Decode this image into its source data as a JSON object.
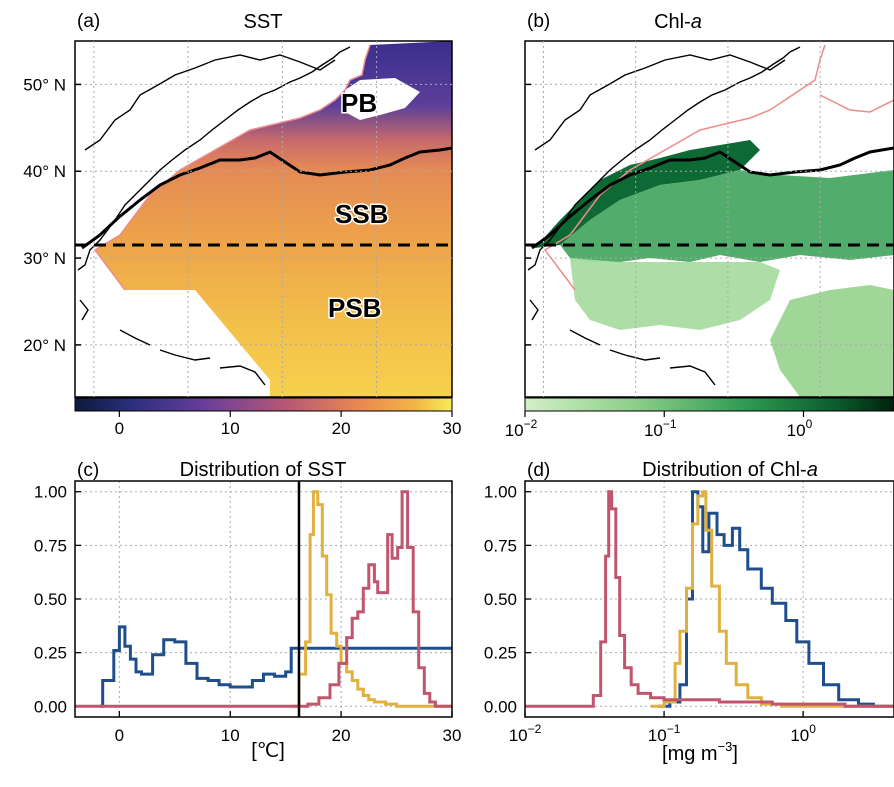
{
  "colors": {
    "pb": "#1f4e8c",
    "ssb": "#e0b040",
    "psb": "#c0566e",
    "front": "#000000",
    "boundary": "#f08a8a"
  },
  "panels": {
    "a": {
      "letter": "(a)",
      "title": "SST"
    },
    "b": {
      "letter": "(b)",
      "title_main": "Chl-",
      "title_italic": "a"
    },
    "c": {
      "letter": "(c)",
      "title": "Distribution of SST",
      "xlabel": "[℃]"
    },
    "d": {
      "letter": "(d)",
      "title_main": "Distribution of Chl-",
      "title_italic": "a",
      "xlabel_main": "[mg m",
      "xlabel_sup": "−3",
      "xlabel_end": "]"
    }
  },
  "map": {
    "lat_ticks": [
      "50° N",
      "40° N",
      "30° N",
      "20° N"
    ],
    "lat_values": [
      50,
      40,
      30,
      20
    ],
    "lat_range": [
      14,
      55
    ],
    "split_lat": 32,
    "region_labels": [
      "PB",
      "SSB",
      "PSB"
    ]
  },
  "colorbars": {
    "sst": {
      "range": [
        -4,
        30
      ],
      "ticks": [
        0,
        10,
        20,
        30
      ],
      "tick_labels": [
        "0",
        "10",
        "20",
        "30"
      ]
    },
    "chl": {
      "log_range": [
        -2,
        0.65
      ],
      "ticks": [
        -2,
        -1,
        0
      ],
      "base": "10",
      "exponents": [
        "−2",
        "−1",
        "0"
      ]
    }
  },
  "chart_data": [
    {
      "type": "line",
      "title": "Distribution of SST",
      "xlabel": "[℃]",
      "xlim": [
        -4,
        30
      ],
      "ylim": [
        -0.05,
        1.05
      ],
      "x_ticks": [
        0,
        10,
        20,
        30
      ],
      "y_ticks": [
        "0.00",
        "0.25",
        "0.50",
        "0.75",
        "1.00"
      ],
      "grid": true,
      "vline_x": 16.2,
      "series": [
        {
          "color": "#1f4e8c",
          "x": [
            -1.8,
            -1.5,
            -0.5,
            0,
            0.5,
            1,
            1.5,
            2,
            3,
            4,
            5,
            6,
            7,
            8,
            9,
            10,
            11,
            12,
            13,
            14,
            15,
            15.5,
            16.2
          ],
          "y": [
            0,
            0.12,
            0.26,
            0.37,
            0.28,
            0.22,
            0.16,
            0.15,
            0.24,
            0.31,
            0.3,
            0.2,
            0.13,
            0.12,
            0.1,
            0.09,
            0.09,
            0.12,
            0.15,
            0.14,
            0.16,
            0.27,
            0.27
          ]
        },
        {
          "color": "#e0b040",
          "x": [
            15.5,
            16.2,
            16.8,
            17.2,
            17.5,
            17.9,
            18.3,
            18.7,
            19.1,
            19.6,
            20,
            20.5,
            21,
            21.5,
            22,
            22.5,
            23,
            24,
            25
          ],
          "y": [
            0,
            0.15,
            0.3,
            0.8,
            1.0,
            0.94,
            0.7,
            0.52,
            0.34,
            0.28,
            0.2,
            0.16,
            0.12,
            0.08,
            0.05,
            0.03,
            0.02,
            0.01,
            0
          ]
        },
        {
          "color": "#c0566e",
          "x": [
            -4,
            16,
            17,
            18,
            19,
            19.8,
            20.5,
            21,
            21.5,
            22,
            22.5,
            23,
            23.3,
            23.7,
            24.2,
            24.6,
            25.1,
            25.5,
            26,
            26.5,
            27,
            27.5,
            28,
            28.5
          ],
          "y": [
            0,
            0,
            0.01,
            0.04,
            0.1,
            0.2,
            0.32,
            0.41,
            0.44,
            0.55,
            0.66,
            0.58,
            0.53,
            0.53,
            0.8,
            0.69,
            0.74,
            1.0,
            0.74,
            0.44,
            0.18,
            0.06,
            0.02,
            0
          ]
        }
      ]
    },
    {
      "type": "line",
      "title": "Distribution of Chl-a",
      "xlabel": "[mg m−3]",
      "x_scale": "log",
      "xlim": [
        0.01,
        4.5
      ],
      "ylim": [
        -0.05,
        1.05
      ],
      "x_ticks": [
        0.01,
        0.1,
        1
      ],
      "y_ticks": [
        "0.00",
        "0.25",
        "0.50",
        "0.75",
        "1.00"
      ],
      "grid": true,
      "series": [
        {
          "color": "#1f4e8c",
          "x": [
            0.09,
            0.11,
            0.13,
            0.145,
            0.16,
            0.175,
            0.19,
            0.21,
            0.24,
            0.27,
            0.31,
            0.35,
            0.4,
            0.5,
            0.6,
            0.75,
            0.9,
            1.1,
            1.4,
            1.8,
            2.5,
            3.2
          ],
          "y": [
            0,
            0.02,
            0.1,
            0.5,
            1.0,
            0.93,
            0.72,
            0.9,
            0.8,
            0.75,
            0.83,
            0.73,
            0.64,
            0.55,
            0.48,
            0.4,
            0.3,
            0.2,
            0.1,
            0.03,
            0.01,
            0
          ]
        },
        {
          "color": "#e0b040",
          "x": [
            0.08,
            0.1,
            0.12,
            0.13,
            0.145,
            0.16,
            0.175,
            0.19,
            0.2,
            0.22,
            0.25,
            0.28,
            0.33,
            0.4,
            0.5,
            0.7
          ],
          "y": [
            0,
            0.02,
            0.2,
            0.35,
            0.55,
            0.85,
            0.98,
            1.0,
            0.82,
            0.56,
            0.35,
            0.2,
            0.1,
            0.04,
            0.01,
            0
          ]
        },
        {
          "color": "#c0566e",
          "x": [
            0.01,
            0.025,
            0.031,
            0.035,
            0.038,
            0.04,
            0.042,
            0.045,
            0.048,
            0.052,
            0.058,
            0.065,
            0.08,
            0.1,
            0.15,
            0.25,
            0.6,
            2,
            4.5
          ],
          "y": [
            0,
            0,
            0.05,
            0.3,
            0.7,
            1.0,
            0.92,
            0.6,
            0.33,
            0.18,
            0.1,
            0.06,
            0.04,
            0.03,
            0.03,
            0.02,
            0.01,
            0.0,
            0
          ]
        }
      ]
    }
  ]
}
